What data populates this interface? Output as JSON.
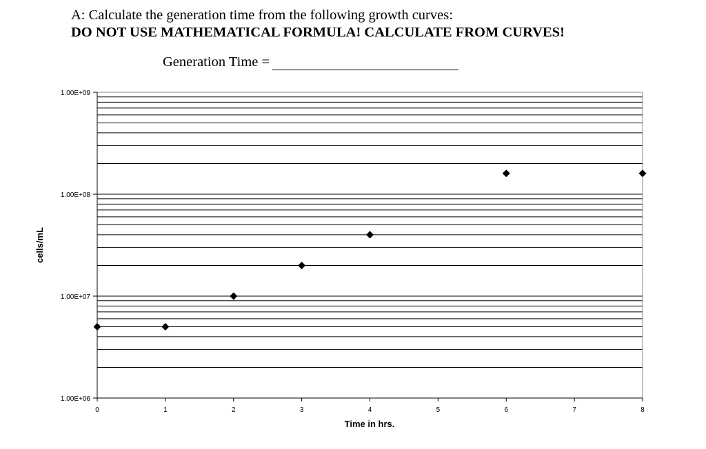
{
  "question": {
    "line1": "A: Calculate the generation time from the following growth curves:",
    "line2": "DO NOT USE MATHEMATICAL FORMULA!  CALCULATE FROM CURVES!",
    "answer_label": "Generation Time ="
  },
  "chart_data": {
    "type": "scatter",
    "xlabel": "Time in hrs.",
    "ylabel": "cells/mL",
    "x_ticks": [
      "0",
      "1",
      "2",
      "3",
      "4",
      "5",
      "6",
      "7",
      "8"
    ],
    "xlim": [
      0,
      8
    ],
    "y_scale": "log",
    "ylim": [
      1000000,
      1000000000
    ],
    "y_ticks": [
      "1.00E+06",
      "1.00E+07",
      "1.00E+08",
      "1.00E+09"
    ],
    "grid": "horizontal major and minor",
    "marker": "diamond",
    "marker_color": "#000000",
    "points": [
      {
        "x": 0,
        "y": 5000000
      },
      {
        "x": 1,
        "y": 5000000
      },
      {
        "x": 2,
        "y": 10000000
      },
      {
        "x": 3,
        "y": 20000000
      },
      {
        "x": 4,
        "y": 40000000
      },
      {
        "x": 6,
        "y": 160000000
      },
      {
        "x": 8,
        "y": 160000000
      }
    ]
  }
}
